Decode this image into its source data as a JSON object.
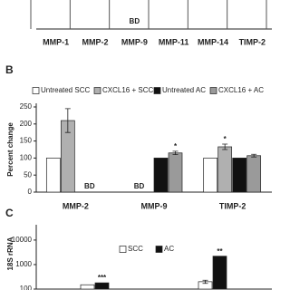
{
  "chart_data": [
    {
      "type": "bar",
      "categories": [
        "MMP-1",
        "MMP-2",
        "MMP-9",
        "MMP-11",
        "MMP-14",
        "TIMP-2"
      ],
      "annotations": [
        {
          "text": "BD",
          "category": 2
        }
      ]
    },
    {
      "type": "bar",
      "panel_label": "B",
      "y_label": "Percent change",
      "categories": [
        "MMP-2",
        "MMP-9",
        "TIMP-2"
      ],
      "series": [
        {
          "name": "Untreated SCC",
          "color": "#ffffff",
          "values": [
            100,
            null,
            100
          ]
        },
        {
          "name": "CXCL16 + SCC",
          "color": "#b0b0b0",
          "values": [
            210,
            null,
            133
          ],
          "errors": [
            35,
            null,
            8
          ]
        },
        {
          "name": "Untreated AC",
          "color": "#111111",
          "values": [
            null,
            100,
            100
          ]
        },
        {
          "name": "CXCL16 + AC",
          "color": "#9a9a9a",
          "values": [
            null,
            115,
            107
          ],
          "errors": [
            null,
            5,
            4
          ]
        }
      ],
      "ylim": [
        0,
        250
      ],
      "yticks": [
        0,
        50,
        100,
        150,
        200,
        250
      ],
      "annotations": [
        {
          "text": "BD",
          "category": 0,
          "series": 2
        },
        {
          "text": "BD",
          "category": 1,
          "series": 0
        },
        {
          "text": "*",
          "category": 1,
          "series": 3
        },
        {
          "text": "*",
          "category": 2,
          "series": 1
        }
      ]
    },
    {
      "type": "bar",
      "panel_label": "C",
      "y_label": "18S rRNA",
      "log_scale": true,
      "categories": [
        null,
        null
      ],
      "series": [
        {
          "name": "SCC",
          "color": "#ffffff",
          "values": [
            150,
            200
          ],
          "errors": [
            null,
            30
          ]
        },
        {
          "name": "AC",
          "color": "#111111",
          "values": [
            180,
            2200
          ]
        }
      ],
      "ylim": [
        100,
        30000
      ],
      "yticks": [
        100,
        1000,
        10000
      ],
      "annotations": [
        {
          "text": "***",
          "category": 0,
          "series": 1
        },
        {
          "text": "**",
          "category": 1,
          "series": 1
        }
      ]
    }
  ]
}
